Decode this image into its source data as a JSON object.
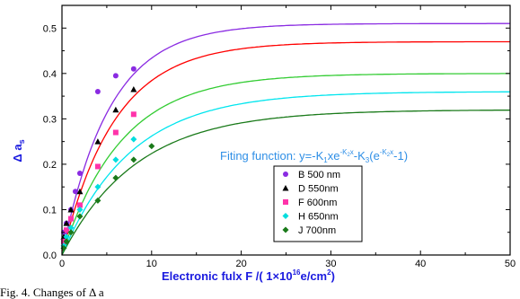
{
  "chart_data": {
    "type": "scatter",
    "xlabel": "Electronic fulx  F /(  1×10",
    "xlabel_sup": "16",
    "xlabel_unit": "e/cm",
    "xlabel_unit_sup": "2",
    "xlabel_close": ")",
    "ylabel": "Δ a",
    "ylabel_sub": "s",
    "xlim": [
      0,
      50
    ],
    "ylim": [
      0,
      0.55
    ],
    "x_ticks": [
      0,
      10,
      20,
      30,
      40,
      50
    ],
    "y_ticks": [
      0.0,
      0.1,
      0.2,
      0.3,
      0.4,
      0.5
    ],
    "x_tick_labels": [
      "0",
      "10",
      "20",
      "30",
      "40",
      "50"
    ],
    "y_tick_labels": [
      "0.0",
      "0.1",
      "0.2",
      "0.3",
      "0.4",
      "0.5"
    ],
    "grid": false,
    "fit_annotation": {
      "text_a": "Fiting function: y=-K",
      "sub_1": "1",
      "text_b": "xe",
      "sup_1": "-K",
      "sup_1_sub": "2",
      "sup_1_x": "x",
      "text_c": "-K",
      "sub_3": "3",
      "text_d": "(e",
      "sup_2": "-K",
      "sup_2_sub": "2",
      "sup_2_x": "x",
      "text_e": "-1)"
    },
    "legend_position": "center-bottom",
    "series": [
      {
        "name": "B   500 nm",
        "color": "#8a2be2",
        "marker": "circle",
        "x": [
          0.2,
          0.5,
          1,
          1.5,
          2,
          4,
          6,
          8
        ],
        "y": [
          0.05,
          0.07,
          0.1,
          0.14,
          0.18,
          0.36,
          0.395,
          0.41
        ],
        "fit_asymptote": 0.51,
        "fit_k2": 0.19
      },
      {
        "name": "D   550nm",
        "color": "#000000",
        "marker": "triangle",
        "x": [
          0.2,
          0.5,
          1,
          2,
          4,
          6,
          8
        ],
        "y": [
          0.04,
          0.07,
          0.1,
          0.14,
          0.25,
          0.32,
          0.365
        ],
        "fit_asymptote": 0.47,
        "fit_k2": 0.17
      },
      {
        "name": "F   600nm",
        "color": "#ff33aa",
        "marker": "square",
        "x": [
          0.2,
          0.5,
          1,
          2,
          4,
          6,
          8
        ],
        "y": [
          0.03,
          0.055,
          0.08,
          0.11,
          0.195,
          0.27,
          0.31
        ],
        "fit_asymptote": 0.4,
        "fit_k2": 0.15
      },
      {
        "name": "H   650nm",
        "color": "#00dddd",
        "marker": "diamond",
        "x": [
          0.2,
          0.5,
          1,
          2,
          4,
          6,
          8
        ],
        "y": [
          0.02,
          0.04,
          0.06,
          0.1,
          0.15,
          0.21,
          0.255
        ],
        "fit_asymptote": 0.36,
        "fit_k2": 0.13
      },
      {
        "name": "J   700nm",
        "color": "#1a7a1a",
        "marker": "diamond",
        "x": [
          0.2,
          0.5,
          1,
          2,
          4,
          6,
          8,
          10
        ],
        "y": [
          0.015,
          0.03,
          0.05,
          0.085,
          0.12,
          0.17,
          0.21,
          0.24
        ],
        "fit_asymptote": 0.32,
        "fit_k2": 0.12
      }
    ],
    "fit_colors": [
      "#8a2be2",
      "#ff0000",
      "#33cc33",
      "#00e5ee",
      "#1a7a1a"
    ]
  },
  "caption": "Fig. 4.  Changes of Δ a"
}
